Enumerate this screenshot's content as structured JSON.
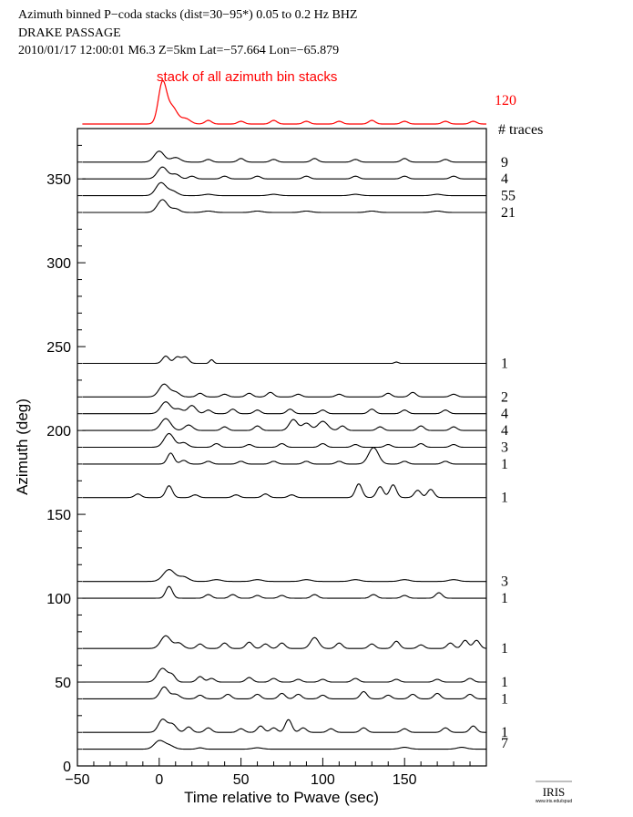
{
  "header": {
    "line1": "Azimuth binned P−coda stacks (dist=30−95*)  0.05 to 0.2 Hz  BHZ",
    "line2": "DRAKE PASSAGE",
    "line3": "2010/01/17  12:00:01  M6.3  Z=5km Lat=−57.664 Lon=−65.879"
  },
  "logo": {
    "text": "IRIS",
    "subtext": "www.iris.edu/spud"
  },
  "colors": {
    "stack": "#ff0000",
    "traces": "#000000",
    "axis": "#000000"
  },
  "chart_data": {
    "type": "line",
    "title": "Azimuth binned P−coda stacks (dist=30−95*)  0.05 to 0.2 Hz  BHZ",
    "xlabel": "Time relative to Pwave (sec)",
    "ylabel": "Azimuth (deg)",
    "xlim": [
      -50,
      200
    ],
    "ylim": [
      0,
      380
    ],
    "xticks": [
      -50,
      0,
      50,
      100,
      150
    ],
    "yticks": [
      0,
      50,
      100,
      150,
      200,
      250,
      300,
      350
    ],
    "stack_label": "stack of all azimuth bin stacks",
    "stack_count": "120",
    "count_header": "# traces",
    "grid": false,
    "series": [
      {
        "azimuth": 10,
        "count": "7",
        "events": [
          [
            0,
            9,
            3
          ],
          [
            6,
            4,
            3
          ],
          [
            25,
            1.5,
            2
          ],
          [
            60,
            1.5,
            3
          ],
          [
            150,
            2,
            3
          ],
          [
            185,
            2,
            3
          ]
        ]
      },
      {
        "azimuth": 20,
        "count": "1",
        "events": [
          [
            2,
            14,
            2.5
          ],
          [
            8,
            9,
            2.5
          ],
          [
            18,
            6,
            2
          ],
          [
            30,
            5,
            2
          ],
          [
            50,
            4,
            2
          ],
          [
            62,
            7,
            2
          ],
          [
            70,
            5,
            2
          ],
          [
            79,
            14,
            2
          ],
          [
            88,
            5,
            2
          ],
          [
            105,
            4,
            2
          ],
          [
            125,
            5,
            2
          ],
          [
            150,
            4,
            2
          ],
          [
            175,
            5,
            2
          ],
          [
            192,
            7,
            2
          ]
        ]
      },
      {
        "azimuth": 40,
        "count": "1",
        "events": [
          [
            3,
            13,
            2.5
          ],
          [
            10,
            5,
            2.5
          ],
          [
            25,
            4,
            2
          ],
          [
            42,
            5,
            2
          ],
          [
            60,
            5,
            2
          ],
          [
            75,
            6,
            2
          ],
          [
            85,
            5,
            2
          ],
          [
            100,
            4,
            2
          ],
          [
            125,
            8,
            2
          ],
          [
            140,
            4,
            2
          ],
          [
            155,
            5,
            2
          ],
          [
            170,
            6,
            2
          ],
          [
            190,
            5,
            2
          ]
        ]
      },
      {
        "azimuth": 50,
        "count": "1",
        "events": [
          [
            2,
            15,
            3
          ],
          [
            8,
            7,
            2
          ],
          [
            25,
            6,
            2
          ],
          [
            32,
            4,
            2
          ],
          [
            55,
            5,
            2
          ],
          [
            70,
            4,
            2
          ],
          [
            85,
            3,
            2
          ],
          [
            100,
            3,
            2
          ],
          [
            120,
            4,
            2
          ],
          [
            145,
            3,
            2
          ],
          [
            170,
            3,
            2
          ],
          [
            190,
            4,
            2
          ]
        ]
      },
      {
        "azimuth": 70,
        "count": "1",
        "events": [
          [
            4,
            14,
            3
          ],
          [
            12,
            6,
            2.5
          ],
          [
            25,
            5,
            2
          ],
          [
            40,
            6,
            2
          ],
          [
            55,
            7,
            2
          ],
          [
            65,
            5,
            2
          ],
          [
            75,
            6,
            2
          ],
          [
            95,
            12,
            2.5
          ],
          [
            110,
            6,
            2
          ],
          [
            130,
            5,
            2
          ],
          [
            145,
            8,
            2
          ],
          [
            160,
            4,
            2
          ],
          [
            178,
            6,
            2
          ],
          [
            187,
            9,
            2
          ],
          [
            194,
            9,
            2
          ]
        ]
      },
      {
        "azimuth": 100,
        "count": "1",
        "events": [
          [
            6,
            13,
            2
          ],
          [
            30,
            4,
            2
          ],
          [
            45,
            4,
            2
          ],
          [
            60,
            3,
            2
          ],
          [
            75,
            3,
            2
          ],
          [
            95,
            4,
            2
          ],
          [
            131,
            4,
            2
          ],
          [
            150,
            3,
            2
          ],
          [
            171,
            6,
            2
          ]
        ]
      },
      {
        "azimuth": 110,
        "count": "3",
        "events": [
          [
            6,
            13,
            3.5
          ],
          [
            15,
            5,
            3
          ],
          [
            35,
            2,
            3
          ],
          [
            60,
            2,
            3
          ],
          [
            90,
            2,
            3
          ],
          [
            120,
            2,
            3
          ],
          [
            150,
            2,
            3
          ],
          [
            180,
            2,
            3
          ]
        ]
      },
      {
        "azimuth": 160,
        "count": "1",
        "events": [
          [
            -13,
            4,
            2
          ],
          [
            6,
            13,
            2
          ],
          [
            22,
            3,
            2
          ],
          [
            47,
            3,
            2
          ],
          [
            65,
            4,
            2
          ],
          [
            81,
            3,
            2
          ],
          [
            122,
            15,
            2
          ],
          [
            135,
            12,
            2
          ],
          [
            143,
            14,
            2
          ],
          [
            158,
            8,
            2
          ],
          [
            166,
            9,
            2
          ]
        ]
      },
      {
        "azimuth": 180,
        "count": "1",
        "events": [
          [
            7,
            12,
            2
          ],
          [
            15,
            4,
            2
          ],
          [
            30,
            3,
            2
          ],
          [
            50,
            3,
            2
          ],
          [
            70,
            3,
            2
          ],
          [
            90,
            3,
            2
          ],
          [
            110,
            3,
            2
          ],
          [
            131,
            18,
            3
          ],
          [
            150,
            3,
            2
          ],
          [
            175,
            3,
            2
          ]
        ]
      },
      {
        "azimuth": 190,
        "count": "3",
        "events": [
          [
            6,
            15,
            3
          ],
          [
            15,
            5,
            2.5
          ],
          [
            35,
            4,
            2
          ],
          [
            55,
            3,
            2
          ],
          [
            75,
            4,
            2
          ],
          [
            100,
            4,
            2
          ],
          [
            120,
            3,
            2
          ],
          [
            140,
            3,
            2
          ],
          [
            160,
            4,
            2
          ],
          [
            180,
            3,
            2
          ]
        ]
      },
      {
        "azimuth": 200,
        "count": "4",
        "events": [
          [
            4,
            13,
            3
          ],
          [
            18,
            6,
            2.5
          ],
          [
            40,
            4,
            2
          ],
          [
            60,
            5,
            2
          ],
          [
            82,
            12,
            2.5
          ],
          [
            90,
            8,
            2.5
          ],
          [
            100,
            10,
            3
          ],
          [
            112,
            5,
            2
          ],
          [
            135,
            4,
            2
          ],
          [
            160,
            5,
            2
          ],
          [
            180,
            4,
            2
          ]
        ]
      },
      {
        "azimuth": 210,
        "count": "4",
        "events": [
          [
            4,
            13,
            3
          ],
          [
            12,
            5,
            2.5
          ],
          [
            20,
            9,
            2.5
          ],
          [
            30,
            4,
            2
          ],
          [
            45,
            5,
            2
          ],
          [
            60,
            4,
            2
          ],
          [
            80,
            5,
            2
          ],
          [
            100,
            4,
            2
          ],
          [
            130,
            5,
            2
          ],
          [
            150,
            4,
            2
          ],
          [
            175,
            4,
            2
          ]
        ]
      },
      {
        "azimuth": 220,
        "count": "2",
        "events": [
          [
            3,
            14,
            3
          ],
          [
            10,
            5,
            2.5
          ],
          [
            25,
            4,
            2
          ],
          [
            40,
            3,
            2
          ],
          [
            55,
            4,
            2
          ],
          [
            68,
            5,
            2
          ],
          [
            85,
            3,
            2
          ],
          [
            110,
            3,
            2
          ],
          [
            140,
            4,
            2
          ],
          [
            155,
            5,
            2
          ],
          [
            180,
            3,
            2
          ]
        ]
      },
      {
        "azimuth": 240,
        "count": "1",
        "events": [
          [
            4,
            8,
            2
          ],
          [
            11,
            7,
            2
          ],
          [
            16,
            7,
            2
          ],
          [
            32,
            4,
            1.2
          ],
          [
            145,
            1.5,
            1.2
          ]
        ]
      },
      {
        "azimuth": 330,
        "count": "21",
        "events": [
          [
            2,
            14,
            3
          ],
          [
            10,
            4,
            2.5
          ],
          [
            30,
            1.5,
            3
          ],
          [
            60,
            1.5,
            3
          ],
          [
            90,
            1.5,
            3
          ],
          [
            130,
            1.5,
            3
          ],
          [
            170,
            1.5,
            3
          ]
        ]
      },
      {
        "azimuth": 340,
        "count": "55",
        "events": [
          [
            1,
            14,
            3
          ],
          [
            8,
            5,
            3
          ],
          [
            30,
            1.5,
            3
          ],
          [
            70,
            1.5,
            3
          ],
          [
            120,
            1.5,
            3
          ],
          [
            170,
            1.5,
            3
          ]
        ]
      },
      {
        "azimuth": 350,
        "count": "4",
        "events": [
          [
            2,
            13,
            3
          ],
          [
            10,
            5,
            2.5
          ],
          [
            20,
            3,
            2
          ],
          [
            40,
            3,
            2
          ],
          [
            60,
            3,
            2
          ],
          [
            90,
            3,
            2
          ],
          [
            120,
            3,
            2
          ],
          [
            150,
            3,
            2
          ],
          [
            180,
            3,
            2
          ]
        ]
      },
      {
        "azimuth": 360,
        "count": "9",
        "events": [
          [
            0,
            12,
            3
          ],
          [
            10,
            5,
            3
          ],
          [
            30,
            3,
            2
          ],
          [
            50,
            4,
            2
          ],
          [
            70,
            3,
            2
          ],
          [
            95,
            4,
            2
          ],
          [
            120,
            3,
            2
          ],
          [
            150,
            4,
            2
          ],
          [
            175,
            3,
            2
          ]
        ]
      }
    ],
    "stack": {
      "events": [
        [
          2,
          45,
          2.5
        ],
        [
          8,
          18,
          3
        ],
        [
          16,
          6,
          3
        ],
        [
          30,
          4,
          2
        ],
        [
          50,
          3,
          2
        ],
        [
          70,
          4,
          2
        ],
        [
          90,
          3,
          2
        ],
        [
          110,
          3,
          2
        ],
        [
          130,
          4,
          2
        ],
        [
          150,
          3,
          2
        ],
        [
          175,
          3,
          2
        ],
        [
          192,
          3,
          2
        ]
      ]
    }
  }
}
